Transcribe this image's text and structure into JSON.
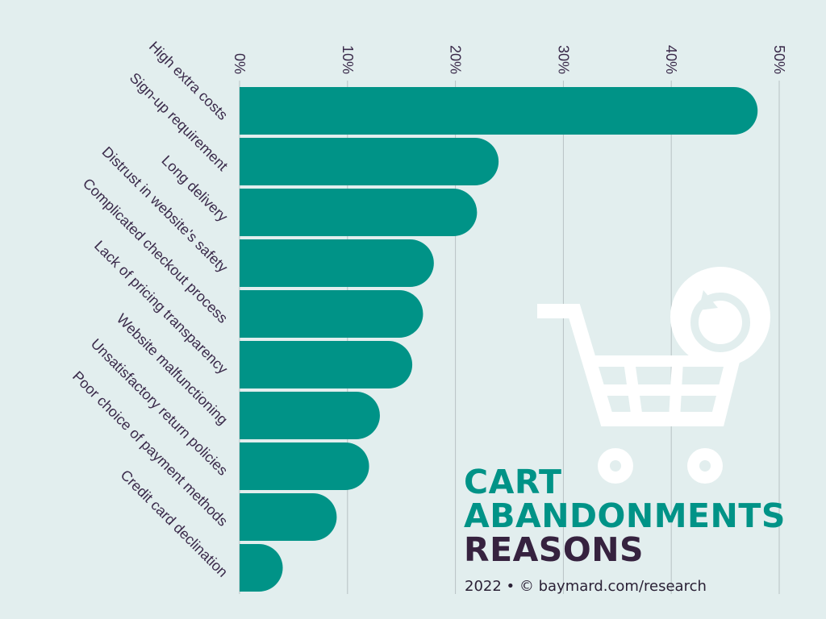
{
  "chart_data": {
    "type": "bar",
    "orientation": "horizontal",
    "categories": [
      "High extra costs",
      "Sign-up requirement",
      "Long delivery",
      "Distrust in website's safety",
      "Complicated checkout process",
      "Lack of pricing transparency",
      "Website malfunctioning",
      "Unsatisfactory return policies",
      "Poor choice of payment methods",
      "Credit card declination"
    ],
    "values": [
      48,
      24,
      22,
      18,
      17,
      16,
      13,
      12,
      9,
      4
    ],
    "xlim": [
      0,
      50
    ],
    "xticks": [
      "0%",
      "10%",
      "20%",
      "30%",
      "40%",
      "50%"
    ],
    "tick_position": "top",
    "grid": true,
    "title_lines": [
      "CART",
      "ABANDONMENTS",
      "REASONS"
    ],
    "source": "2022 • © baymard.com/research",
    "colors": {
      "bar": "#009387",
      "background": "#e2eeee",
      "title_accent": "#009387",
      "title_dark": "#36223f",
      "label": "#3a2a4a",
      "grid": "#b8c2c4"
    },
    "icon": "shopping-cart-refresh-icon"
  }
}
